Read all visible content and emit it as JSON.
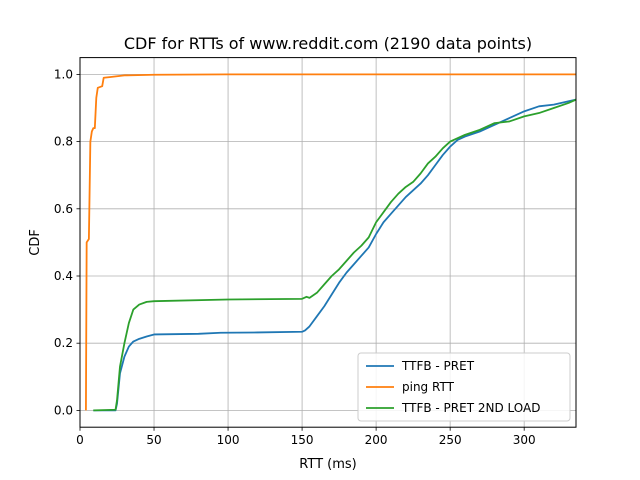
{
  "chart_data": {
    "type": "line",
    "title": "CDF for RTTs of www.reddit.com (2190 data points)",
    "xlabel": "RTT (ms)",
    "ylabel": "CDF",
    "xlim": [
      0,
      335
    ],
    "ylim": [
      -0.05,
      1.05
    ],
    "xticks": [
      0,
      50,
      100,
      150,
      200,
      250,
      300
    ],
    "yticks": [
      0.0,
      0.2,
      0.4,
      0.6,
      0.8,
      1.0
    ],
    "xtick_labels": [
      "0",
      "50",
      "100",
      "150",
      "200",
      "250",
      "300"
    ],
    "ytick_labels": [
      "0.0",
      "0.2",
      "0.4",
      "0.6",
      "0.8",
      "1.0"
    ],
    "grid": true,
    "legend_position": "lower-right",
    "series": [
      {
        "name": "TTFB - PRET",
        "color": "#1f77b4",
        "points": [
          [
            9,
            0
          ],
          [
            24,
            0
          ],
          [
            25,
            0.02
          ],
          [
            27,
            0.11
          ],
          [
            30,
            0.16
          ],
          [
            33,
            0.19
          ],
          [
            36,
            0.205
          ],
          [
            40,
            0.213
          ],
          [
            45,
            0.22
          ],
          [
            50,
            0.226
          ],
          [
            80,
            0.228
          ],
          [
            95,
            0.231
          ],
          [
            120,
            0.232
          ],
          [
            150,
            0.234
          ],
          [
            152,
            0.238
          ],
          [
            155,
            0.25
          ],
          [
            160,
            0.28
          ],
          [
            165,
            0.31
          ],
          [
            170,
            0.345
          ],
          [
            175,
            0.38
          ],
          [
            180,
            0.41
          ],
          [
            185,
            0.435
          ],
          [
            190,
            0.46
          ],
          [
            195,
            0.485
          ],
          [
            200,
            0.525
          ],
          [
            205,
            0.56
          ],
          [
            210,
            0.585
          ],
          [
            215,
            0.61
          ],
          [
            220,
            0.635
          ],
          [
            225,
            0.655
          ],
          [
            230,
            0.675
          ],
          [
            235,
            0.7
          ],
          [
            240,
            0.73
          ],
          [
            245,
            0.76
          ],
          [
            250,
            0.785
          ],
          [
            255,
            0.805
          ],
          [
            260,
            0.815
          ],
          [
            270,
            0.83
          ],
          [
            280,
            0.85
          ],
          [
            290,
            0.87
          ],
          [
            300,
            0.89
          ],
          [
            310,
            0.905
          ],
          [
            320,
            0.91
          ],
          [
            330,
            0.92
          ],
          [
            335,
            0.925
          ]
        ]
      },
      {
        "name": "ping RTT",
        "color": "#ff7f0e",
        "points": [
          [
            4,
            0
          ],
          [
            4.5,
            0.5
          ],
          [
            6,
            0.51
          ],
          [
            7,
            0.8
          ],
          [
            8,
            0.83
          ],
          [
            9,
            0.84
          ],
          [
            10,
            0.84
          ],
          [
            11,
            0.93
          ],
          [
            12,
            0.96
          ],
          [
            15,
            0.965
          ],
          [
            16,
            0.99
          ],
          [
            20,
            0.992
          ],
          [
            30,
            0.997
          ],
          [
            50,
            0.999
          ],
          [
            100,
            1.0
          ],
          [
            335,
            1.0
          ]
        ]
      },
      {
        "name": "TTFB - PRET 2ND LOAD",
        "color": "#2ca02c",
        "points": [
          [
            9,
            0
          ],
          [
            24,
            0.002
          ],
          [
            25,
            0.03
          ],
          [
            27,
            0.13
          ],
          [
            30,
            0.2
          ],
          [
            33,
            0.26
          ],
          [
            36,
            0.3
          ],
          [
            40,
            0.315
          ],
          [
            45,
            0.323
          ],
          [
            50,
            0.325
          ],
          [
            100,
            0.33
          ],
          [
            150,
            0.332
          ],
          [
            153,
            0.338
          ],
          [
            155,
            0.335
          ],
          [
            160,
            0.35
          ],
          [
            165,
            0.375
          ],
          [
            170,
            0.4
          ],
          [
            175,
            0.42
          ],
          [
            180,
            0.445
          ],
          [
            185,
            0.47
          ],
          [
            190,
            0.49
          ],
          [
            195,
            0.515
          ],
          [
            200,
            0.56
          ],
          [
            205,
            0.59
          ],
          [
            210,
            0.62
          ],
          [
            215,
            0.645
          ],
          [
            220,
            0.665
          ],
          [
            225,
            0.68
          ],
          [
            230,
            0.705
          ],
          [
            235,
            0.735
          ],
          [
            240,
            0.755
          ],
          [
            245,
            0.78
          ],
          [
            250,
            0.8
          ],
          [
            255,
            0.81
          ],
          [
            260,
            0.82
          ],
          [
            270,
            0.835
          ],
          [
            280,
            0.855
          ],
          [
            290,
            0.86
          ],
          [
            300,
            0.875
          ],
          [
            310,
            0.885
          ],
          [
            320,
            0.9
          ],
          [
            330,
            0.915
          ],
          [
            335,
            0.925
          ]
        ]
      }
    ]
  }
}
